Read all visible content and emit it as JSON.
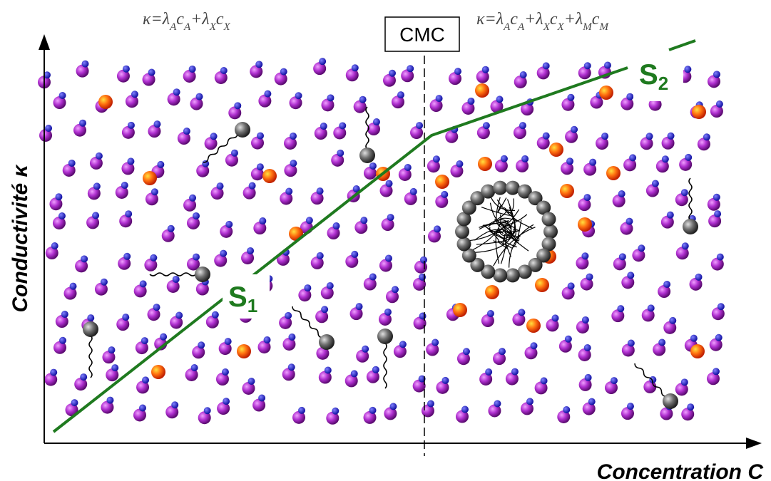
{
  "formulas": [
    {
      "parts": [
        {
          "t": "κ=λ",
          "sub": "A"
        },
        {
          "t": "c",
          "sub": "A"
        },
        {
          "t": "+λ",
          "sub": "X"
        },
        {
          "t": "c",
          "sub": "X"
        }
      ]
    },
    {
      "parts": [
        {
          "t": "κ=λ",
          "sub": "A"
        },
        {
          "t": "c",
          "sub": "A"
        },
        {
          "t": "+λ",
          "sub": "X"
        },
        {
          "t": "c",
          "sub": "X"
        },
        {
          "t": "+λ",
          "sub": "M"
        },
        {
          "t": "c",
          "sub": "M"
        }
      ]
    }
  ],
  "cmc_label": "CMC",
  "slope_labels": [
    {
      "t": "S",
      "sub": "1"
    },
    {
      "t": "S",
      "sub": "2"
    }
  ],
  "y_axis_label": "Conductivité κ",
  "x_axis_label": "Concentration C"
}
